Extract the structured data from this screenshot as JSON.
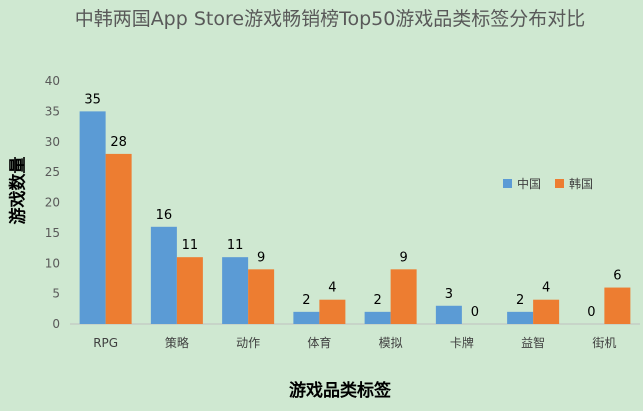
{
  "chart_data": {
    "type": "bar",
    "title": "中韩两国App Store游戏畅销榜Top50游戏品类标签分布对比",
    "xlabel": "游戏品类标签",
    "ylabel": "游戏数量",
    "categories": [
      "RPG",
      "策略",
      "动作",
      "体育",
      "模拟",
      "卡牌",
      "益智",
      "街机"
    ],
    "series": [
      {
        "name": "中国",
        "color": "#5b9bd5",
        "values": [
          35,
          16,
          11,
          2,
          2,
          3,
          2,
          0
        ]
      },
      {
        "name": "韩国",
        "color": "#ed7d31",
        "values": [
          28,
          11,
          9,
          4,
          9,
          0,
          4,
          6
        ]
      }
    ],
    "yticks": [
      0,
      5,
      10,
      15,
      20,
      25,
      30,
      35,
      40
    ],
    "ylim": [
      0,
      40
    ],
    "grid": false,
    "legend": "right",
    "data_labels": true
  }
}
